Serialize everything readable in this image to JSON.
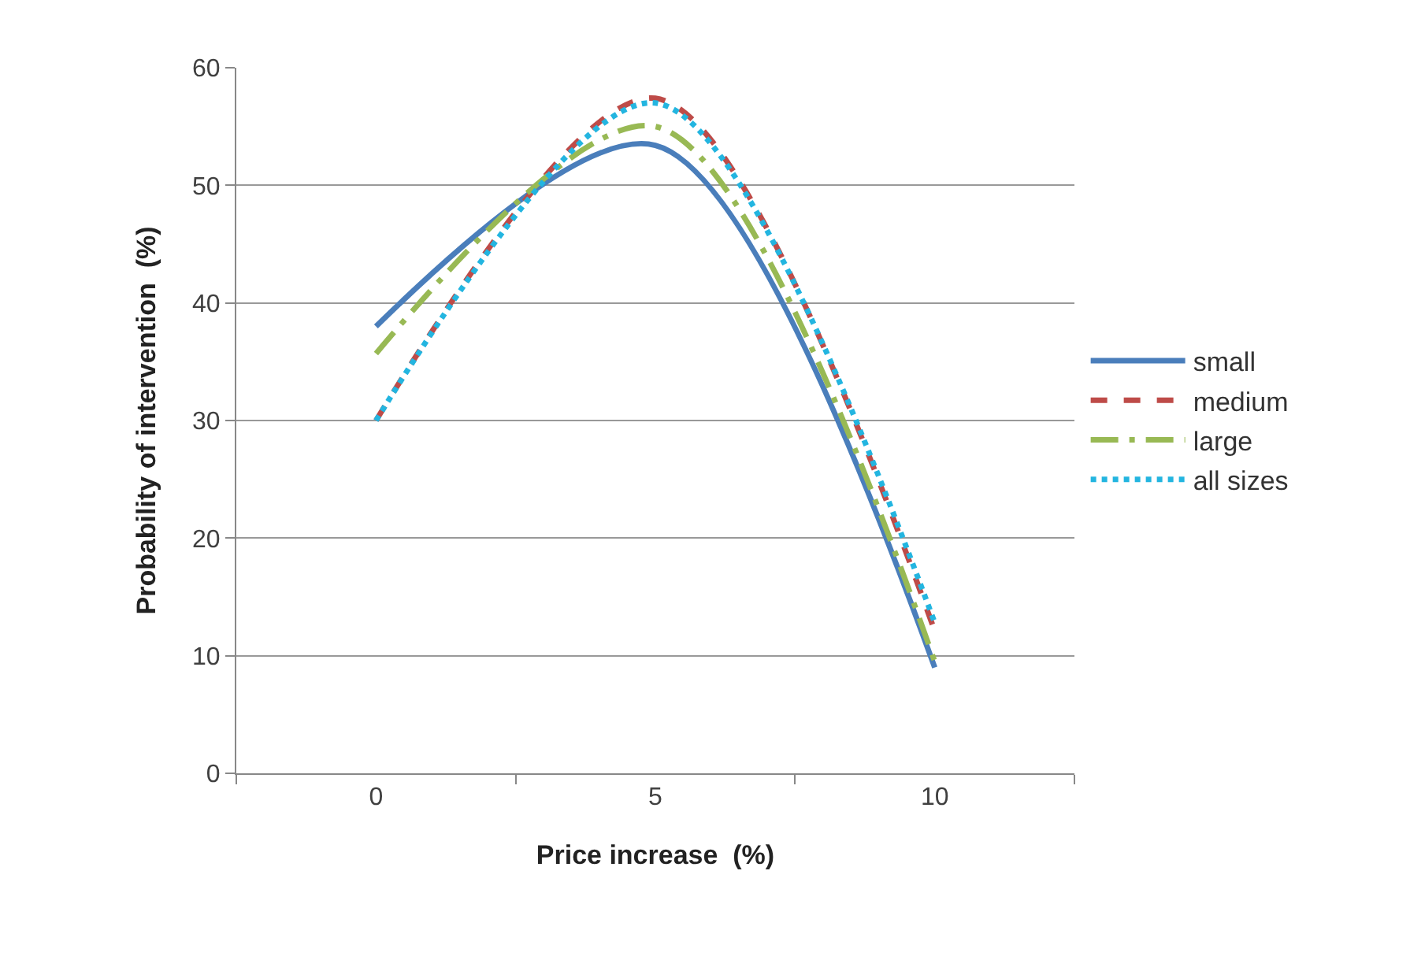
{
  "chart_data": {
    "type": "line",
    "xlabel": "Price increase  (%)",
    "ylabel": "Probability of intervention  (%)",
    "categories": [
      "0",
      "5",
      "10"
    ],
    "series": [
      {
        "name": "small",
        "color": "#4a7ebb",
        "values": [
          38,
          53.4,
          9
        ],
        "line_style": "solid"
      },
      {
        "name": "medium",
        "color": "#be4b48",
        "values": [
          30,
          57.4,
          12.1
        ],
        "line_style": "dashed"
      },
      {
        "name": "large",
        "color": "#98b954",
        "values": [
          35.7,
          55,
          9.5
        ],
        "line_style": "dashdot"
      },
      {
        "name": "all sizes",
        "color": "#23b5e0",
        "values": [
          30,
          57,
          12.8
        ],
        "line_style": "dotted"
      }
    ],
    "ylim": [
      0,
      60
    ],
    "yticks": [
      0,
      10,
      20,
      30,
      40,
      50,
      60
    ],
    "grid": "y",
    "legend": "right",
    "marker": "none"
  }
}
